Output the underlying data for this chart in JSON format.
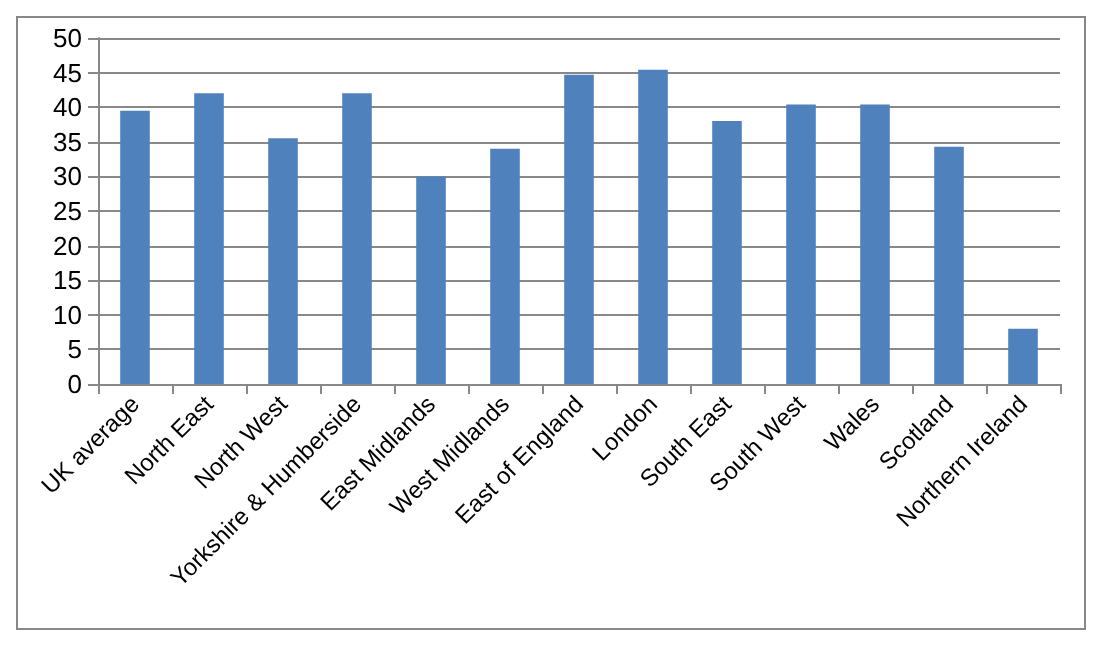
{
  "chart_data": {
    "type": "bar",
    "categories": [
      "UK average",
      "North East",
      "North West",
      "Yorkshire & Humberside",
      "East Midlands",
      "West Midlands",
      "East of England",
      "London",
      "South East",
      "South West",
      "Wales",
      "Scotland",
      "Northern Ireland"
    ],
    "values": [
      39.5,
      42,
      35.5,
      42,
      30,
      34,
      44.7,
      45.4,
      38,
      40.4,
      40.4,
      34.3,
      8
    ],
    "color": "#4f81bd",
    "ylim": [
      0,
      50
    ],
    "yticks": [
      0,
      5,
      10,
      15,
      20,
      25,
      30,
      35,
      40,
      45,
      50
    ],
    "grid": "y"
  }
}
